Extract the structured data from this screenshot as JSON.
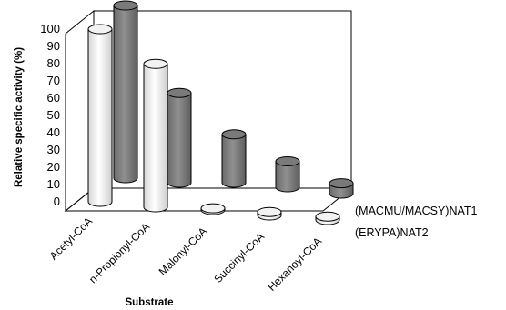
{
  "chart_data": {
    "type": "bar",
    "style": "3d-cylinder",
    "title": "",
    "xlabel": "Substrate",
    "ylabel": "Relative specific activity (%)",
    "ylim": [
      0,
      100
    ],
    "yticks": [
      "0",
      "10",
      "20",
      "30",
      "40",
      "50",
      "60",
      "70",
      "80",
      "90",
      "100"
    ],
    "categories": [
      "Acetyl-CoA",
      "n-Propionyl-CoA",
      "Malonyl-CoA",
      "Succinyl-CoA",
      "Hexanoyl-CoA"
    ],
    "series": [
      {
        "name": "(MACMU/MACSY)NAT1",
        "color": "#808080",
        "values": [
          100,
          52,
          28,
          15,
          6
        ]
      },
      {
        "name": "(ERYPA)NAT2",
        "color": "#ffffff",
        "values": [
          100,
          83,
          1,
          2,
          2
        ]
      }
    ],
    "grid": false,
    "legend": "none"
  }
}
